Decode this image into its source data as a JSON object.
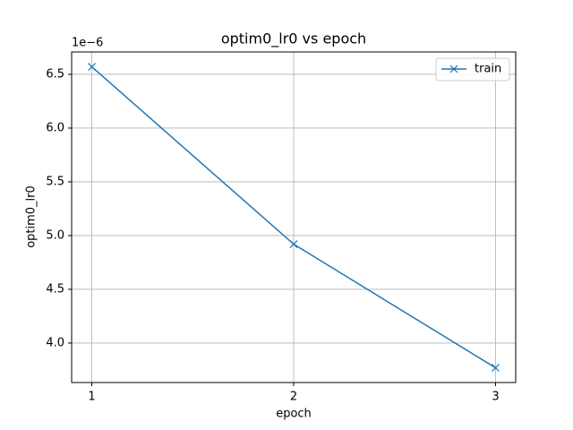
{
  "chart_data": {
    "type": "line",
    "title": "optim0_lr0 vs epoch",
    "x_label": "epoch",
    "y_label": "optim0_lr0",
    "y_offset_label": "1e−6",
    "x": [
      1,
      2,
      3
    ],
    "series": [
      {
        "name": "train",
        "color": "#1f77b4",
        "marker": "x",
        "values": [
          6.57,
          4.92,
          3.77
        ]
      }
    ],
    "xlim": [
      0.9,
      3.1
    ],
    "xticks": [
      1,
      2,
      3
    ],
    "ylim": [
      3.633,
      6.708
    ],
    "yticks": [
      {
        "value": 4.0,
        "label": "4.0"
      },
      {
        "value": 4.5,
        "label": "4.5"
      },
      {
        "value": 5.0,
        "label": "5.0"
      },
      {
        "value": 5.5,
        "label": "5.5"
      },
      {
        "value": 6.0,
        "label": "6.0"
      },
      {
        "value": 6.5,
        "label": "6.5"
      }
    ],
    "grid": true,
    "legend": "upper right"
  }
}
